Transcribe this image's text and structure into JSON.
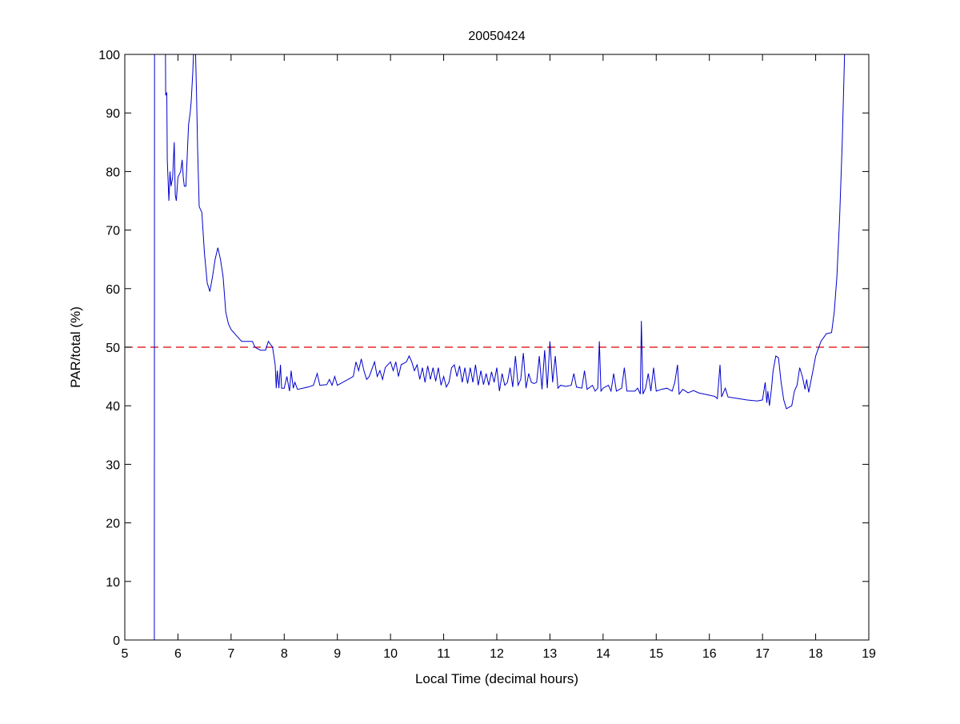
{
  "chart_data": {
    "type": "line",
    "title": "20050424",
    "xlabel": "Local Time (decimal hours)",
    "ylabel": "PAR/total (%)",
    "xlim": [
      5,
      19
    ],
    "ylim": [
      0,
      100
    ],
    "xticks": [
      5,
      6,
      7,
      8,
      9,
      10,
      11,
      12,
      13,
      14,
      15,
      16,
      17,
      18,
      19
    ],
    "yticks": [
      0,
      10,
      20,
      30,
      40,
      50,
      60,
      70,
      80,
      90,
      100
    ],
    "grid": false,
    "colors": {
      "series": "#0000cc",
      "reference": "#dd0000"
    },
    "reference_line": {
      "y": 50,
      "style": "dashed"
    },
    "series": [
      {
        "name": "PAR/total",
        "segments": [
          [
            [
              5.555,
              0
            ],
            [
              5.56,
              110
            ]
          ],
          [
            [
              5.76,
              110
            ],
            [
              5.77,
              93
            ],
            [
              5.79,
              93.5
            ],
            [
              5.8,
              82
            ],
            [
              5.83,
              75
            ],
            [
              5.85,
              80
            ],
            [
              5.87,
              77.5
            ],
            [
              5.9,
              79
            ],
            [
              5.93,
              85
            ],
            [
              5.95,
              76
            ],
            [
              5.97,
              75
            ],
            [
              6.0,
              79
            ],
            [
              6.05,
              80
            ],
            [
              6.08,
              82
            ],
            [
              6.1,
              79
            ],
            [
              6.12,
              77.5
            ],
            [
              6.15,
              77.5
            ],
            [
              6.2,
              88
            ],
            [
              6.23,
              90
            ],
            [
              6.25,
              92
            ],
            [
              6.28,
              97
            ],
            [
              6.3,
              102
            ],
            [
              6.33,
              101
            ],
            [
              6.35,
              93
            ],
            [
              6.37,
              84
            ],
            [
              6.4,
              74
            ],
            [
              6.45,
              73
            ],
            [
              6.5,
              66
            ],
            [
              6.55,
              61
            ],
            [
              6.6,
              59.5
            ],
            [
              6.65,
              62
            ],
            [
              6.7,
              65
            ],
            [
              6.75,
              67
            ],
            [
              6.8,
              65
            ],
            [
              6.85,
              62
            ],
            [
              6.9,
              56
            ],
            [
              6.95,
              54
            ],
            [
              7.0,
              53
            ],
            [
              7.1,
              52
            ],
            [
              7.2,
              51
            ],
            [
              7.3,
              51
            ],
            [
              7.4,
              51
            ],
            [
              7.45,
              50
            ],
            [
              7.55,
              49.5
            ],
            [
              7.65,
              49.5
            ],
            [
              7.7,
              51
            ],
            [
              7.78,
              50
            ],
            [
              7.83,
              47
            ],
            [
              7.85,
              43
            ],
            [
              7.87,
              46
            ],
            [
              7.9,
              43
            ],
            [
              7.93,
              47
            ],
            [
              7.95,
              43
            ],
            [
              8.0,
              43
            ],
            [
              8.05,
              45
            ],
            [
              8.1,
              42.5
            ],
            [
              8.13,
              46
            ],
            [
              8.17,
              43
            ],
            [
              8.2,
              44
            ],
            [
              8.25,
              42.8
            ],
            [
              8.35,
              43
            ],
            [
              8.45,
              43.2
            ],
            [
              8.55,
              43.5
            ],
            [
              8.62,
              45.5
            ],
            [
              8.67,
              43.5
            ],
            [
              8.8,
              43.6
            ],
            [
              8.85,
              44.5
            ],
            [
              8.9,
              43.5
            ],
            [
              8.95,
              45
            ],
            [
              9.0,
              43.5
            ],
            [
              9.1,
              44
            ],
            [
              9.2,
              44.5
            ],
            [
              9.3,
              45
            ],
            [
              9.35,
              47.5
            ],
            [
              9.4,
              46
            ],
            [
              9.45,
              48
            ],
            [
              9.5,
              46
            ],
            [
              9.55,
              44.5
            ],
            [
              9.6,
              45
            ],
            [
              9.7,
              47.5
            ],
            [
              9.75,
              45
            ],
            [
              9.8,
              46
            ],
            [
              9.85,
              44.5
            ],
            [
              9.9,
              46.5
            ],
            [
              10.0,
              47.5
            ],
            [
              10.05,
              46
            ],
            [
              10.1,
              47.5
            ],
            [
              10.15,
              45
            ],
            [
              10.2,
              47
            ],
            [
              10.3,
              47.5
            ],
            [
              10.35,
              48.5
            ],
            [
              10.4,
              47.5
            ],
            [
              10.45,
              46
            ],
            [
              10.5,
              47
            ],
            [
              10.55,
              44.5
            ],
            [
              10.6,
              46.5
            ],
            [
              10.65,
              44
            ],
            [
              10.7,
              46.8
            ],
            [
              10.75,
              44.5
            ],
            [
              10.8,
              46.5
            ],
            [
              10.85,
              44.2
            ],
            [
              10.9,
              46.5
            ],
            [
              10.95,
              43.5
            ],
            [
              11.0,
              45
            ],
            [
              11.05,
              43.2
            ],
            [
              11.1,
              44
            ],
            [
              11.15,
              46.5
            ],
            [
              11.2,
              47
            ],
            [
              11.25,
              45
            ],
            [
              11.3,
              46.8
            ],
            [
              11.35,
              44
            ],
            [
              11.4,
              46.5
            ],
            [
              11.45,
              43.8
            ],
            [
              11.5,
              46.5
            ],
            [
              11.55,
              44
            ],
            [
              11.6,
              47
            ],
            [
              11.65,
              43.5
            ],
            [
              11.7,
              46
            ],
            [
              11.75,
              43.6
            ],
            [
              11.8,
              45.5
            ],
            [
              11.85,
              43.5
            ],
            [
              11.9,
              45.8
            ],
            [
              11.95,
              44
            ],
            [
              12.0,
              46.5
            ],
            [
              12.05,
              42.5
            ],
            [
              12.1,
              45.5
            ],
            [
              12.15,
              43.5
            ],
            [
              12.2,
              44
            ],
            [
              12.25,
              46.5
            ],
            [
              12.3,
              43.2
            ],
            [
              12.35,
              48.5
            ],
            [
              12.4,
              43.5
            ],
            [
              12.45,
              44.5
            ],
            [
              12.5,
              49
            ],
            [
              12.55,
              43
            ],
            [
              12.6,
              45.5
            ],
            [
              12.65,
              44
            ],
            [
              12.7,
              43.8
            ],
            [
              12.75,
              44
            ],
            [
              12.8,
              48.5
            ],
            [
              12.85,
              42.8
            ],
            [
              12.9,
              49.5
            ],
            [
              12.95,
              43
            ],
            [
              13.0,
              51
            ],
            [
              13.05,
              44
            ],
            [
              13.1,
              48.5
            ],
            [
              13.15,
              43
            ],
            [
              13.2,
              43.5
            ],
            [
              13.3,
              43.3
            ],
            [
              13.4,
              43.5
            ],
            [
              13.45,
              45.5
            ],
            [
              13.5,
              43.2
            ],
            [
              13.6,
              43
            ],
            [
              13.65,
              46
            ],
            [
              13.7,
              42.8
            ],
            [
              13.8,
              43.5
            ],
            [
              13.85,
              42.5
            ],
            [
              13.9,
              43
            ],
            [
              13.93,
              51
            ],
            [
              13.96,
              42.5
            ],
            [
              14.0,
              43
            ],
            [
              14.1,
              43.5
            ],
            [
              14.15,
              42.5
            ],
            [
              14.2,
              45.5
            ],
            [
              14.25,
              42.5
            ],
            [
              14.35,
              43
            ],
            [
              14.4,
              46.5
            ],
            [
              14.45,
              42.5
            ],
            [
              14.6,
              42.5
            ],
            [
              14.65,
              43
            ],
            [
              14.7,
              42
            ],
            [
              14.72,
              54.5
            ],
            [
              14.75,
              42
            ],
            [
              14.8,
              43
            ],
            [
              14.85,
              45.5
            ],
            [
              14.9,
              42.5
            ],
            [
              14.95,
              46.5
            ],
            [
              15.0,
              42.5
            ],
            [
              15.1,
              42.8
            ],
            [
              15.2,
              43
            ],
            [
              15.3,
              42.5
            ],
            [
              15.35,
              44
            ],
            [
              15.4,
              47
            ],
            [
              15.43,
              42
            ],
            [
              15.5,
              42.8
            ],
            [
              15.6,
              42.2
            ],
            [
              15.7,
              42.6
            ],
            [
              15.8,
              42.2
            ],
            [
              15.9,
              42
            ],
            [
              16.0,
              41.8
            ],
            [
              16.1,
              41.6
            ],
            [
              16.15,
              41.2
            ],
            [
              16.2,
              47
            ],
            [
              16.23,
              41.5
            ],
            [
              16.3,
              43
            ],
            [
              16.35,
              41.5
            ],
            [
              16.5,
              41.3
            ],
            [
              16.7,
              41
            ],
            [
              16.9,
              40.8
            ],
            [
              17.0,
              41
            ],
            [
              17.05,
              44
            ],
            [
              17.08,
              40.5
            ],
            [
              17.1,
              42.5
            ],
            [
              17.13,
              40
            ],
            [
              17.17,
              43
            ],
            [
              17.2,
              46
            ],
            [
              17.25,
              48.5
            ],
            [
              17.3,
              48.2
            ],
            [
              17.35,
              44
            ],
            [
              17.4,
              41
            ],
            [
              17.45,
              39.5
            ],
            [
              17.55,
              40
            ],
            [
              17.6,
              42.5
            ],
            [
              17.65,
              43.5
            ],
            [
              17.7,
              46.5
            ],
            [
              17.75,
              45
            ],
            [
              17.8,
              42.8
            ],
            [
              17.83,
              44.5
            ],
            [
              17.87,
              42.3
            ],
            [
              17.95,
              46
            ],
            [
              18.0,
              48.5
            ],
            [
              18.1,
              51
            ],
            [
              18.2,
              52.3
            ],
            [
              18.3,
              52.5
            ],
            [
              18.35,
              56
            ],
            [
              18.4,
              62
            ],
            [
              18.45,
              72
            ],
            [
              18.5,
              85
            ],
            [
              18.55,
              102
            ]
          ]
        ]
      }
    ]
  }
}
